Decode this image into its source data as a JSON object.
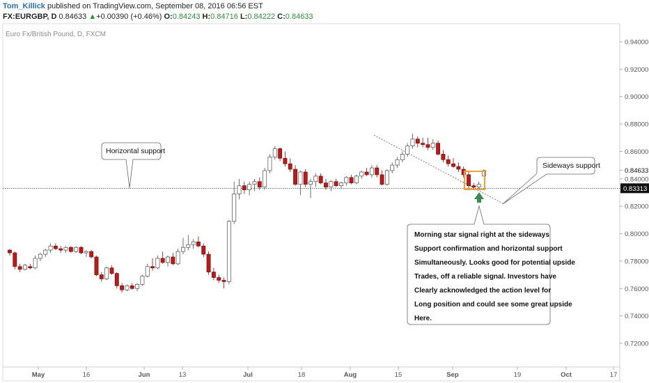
{
  "header": {
    "author": "Tom_Killick",
    "published": " published on TradingView.com, September 08, 2016 06:56 EST",
    "symbol": "FX:EURGBP, D",
    "last": "0.84633",
    "change_arrow": "▲",
    "change": "+0.00390 (+0.46%)",
    "o_label": "O:",
    "o_value": "0.84243",
    "h_label": "H:",
    "h_value": "0.84716",
    "l_label": "L:",
    "l_value": "0.84222",
    "c_label": "C:",
    "c_value": "0.84633"
  },
  "chart_title": "Euro Fx/British Pound, D, FXCM",
  "annotations": {
    "horizontal_support": "Horizontal support",
    "sideways_support": "Sideways support",
    "note_lines": [
      "Morning star signal right at the sideways",
      "Support confirmation and horizontal support",
      "Simultaneously. Looks good for potential upside",
      "Trades, off a reliable signal. Investors have",
      "Clearly acknowledged the action level for",
      "Long position and could see some great upside",
      "Here."
    ]
  },
  "colors": {
    "up_fill": "#ffffff",
    "up_stroke": "#4a4a4a",
    "down_fill": "#b71c1c",
    "down_stroke": "#7a1010",
    "highlight_box": "#f0a030",
    "arrow": "#3d8a55",
    "price_label_bg": "#111111",
    "price_label_fg": "#ffffff"
  },
  "chart_data": {
    "type": "candlestick",
    "title": "Euro Fx/British Pound, D, FXCM",
    "symbol": "EURGBP",
    "ylim": [
      0.702,
      0.95
    ],
    "y_ticks": [
      "0.94000",
      "0.92000",
      "0.90000",
      "0.88000",
      "0.86000",
      "0.84633",
      "0.84000",
      "0.83313",
      "0.82000",
      "0.80000",
      "0.78000",
      "0.76000",
      "0.74000",
      "0.72000"
    ],
    "x_ticks": [
      "May",
      "16",
      "Jun",
      "13",
      "Jul",
      "18",
      "Aug",
      "15",
      "Sep",
      "19",
      "Oct",
      "17"
    ],
    "current_price": 0.84633,
    "horizontal_support_level": 0.83313,
    "candles": [
      [
        0.788,
        0.789,
        0.784,
        0.786
      ],
      [
        0.786,
        0.787,
        0.774,
        0.776
      ],
      [
        0.776,
        0.778,
        0.772,
        0.774
      ],
      [
        0.774,
        0.778,
        0.773,
        0.777
      ],
      [
        0.776,
        0.778,
        0.774,
        0.775
      ],
      [
        0.775,
        0.784,
        0.774,
        0.782
      ],
      [
        0.782,
        0.786,
        0.78,
        0.785
      ],
      [
        0.785,
        0.789,
        0.783,
        0.788
      ],
      [
        0.788,
        0.793,
        0.786,
        0.791
      ],
      [
        0.791,
        0.793,
        0.788,
        0.789
      ],
      [
        0.789,
        0.791,
        0.786,
        0.788
      ],
      [
        0.788,
        0.791,
        0.786,
        0.79
      ],
      [
        0.79,
        0.791,
        0.786,
        0.787
      ],
      [
        0.787,
        0.791,
        0.786,
        0.79
      ],
      [
        0.79,
        0.791,
        0.785,
        0.786
      ],
      [
        0.786,
        0.788,
        0.783,
        0.787
      ],
      [
        0.787,
        0.788,
        0.782,
        0.783
      ],
      [
        0.783,
        0.784,
        0.769,
        0.77
      ],
      [
        0.77,
        0.772,
        0.765,
        0.767
      ],
      [
        0.767,
        0.776,
        0.766,
        0.775
      ],
      [
        0.775,
        0.777,
        0.77,
        0.771
      ],
      [
        0.771,
        0.772,
        0.76,
        0.762
      ],
      [
        0.762,
        0.764,
        0.757,
        0.759
      ],
      [
        0.759,
        0.763,
        0.758,
        0.762
      ],
      [
        0.762,
        0.764,
        0.759,
        0.76
      ],
      [
        0.76,
        0.764,
        0.758,
        0.763
      ],
      [
        0.763,
        0.77,
        0.762,
        0.769
      ],
      [
        0.769,
        0.778,
        0.768,
        0.776
      ],
      [
        0.776,
        0.782,
        0.773,
        0.775
      ],
      [
        0.775,
        0.784,
        0.774,
        0.782
      ],
      [
        0.782,
        0.787,
        0.778,
        0.779
      ],
      [
        0.779,
        0.784,
        0.776,
        0.783
      ],
      [
        0.783,
        0.786,
        0.777,
        0.778
      ],
      [
        0.778,
        0.789,
        0.777,
        0.787
      ],
      [
        0.787,
        0.797,
        0.785,
        0.79
      ],
      [
        0.79,
        0.799,
        0.788,
        0.792
      ],
      [
        0.792,
        0.796,
        0.789,
        0.794
      ],
      [
        0.794,
        0.798,
        0.79,
        0.791
      ],
      [
        0.791,
        0.793,
        0.783,
        0.785
      ],
      [
        0.785,
        0.787,
        0.77,
        0.772
      ],
      [
        0.772,
        0.775,
        0.766,
        0.768
      ],
      [
        0.768,
        0.77,
        0.764,
        0.766
      ],
      [
        0.766,
        0.768,
        0.76,
        0.765
      ],
      [
        0.765,
        0.81,
        0.763,
        0.809
      ],
      [
        0.809,
        0.838,
        0.807,
        0.829
      ],
      [
        0.829,
        0.84,
        0.825,
        0.835
      ],
      [
        0.835,
        0.838,
        0.829,
        0.832
      ],
      [
        0.832,
        0.838,
        0.828,
        0.836
      ],
      [
        0.836,
        0.84,
        0.831,
        0.838
      ],
      [
        0.838,
        0.841,
        0.832,
        0.834
      ],
      [
        0.834,
        0.848,
        0.832,
        0.846
      ],
      [
        0.846,
        0.858,
        0.844,
        0.856
      ],
      [
        0.856,
        0.864,
        0.854,
        0.862
      ],
      [
        0.862,
        0.863,
        0.853,
        0.855
      ],
      [
        0.855,
        0.86,
        0.849,
        0.851
      ],
      [
        0.851,
        0.855,
        0.845,
        0.847
      ],
      [
        0.847,
        0.85,
        0.835,
        0.836
      ],
      [
        0.836,
        0.846,
        0.828,
        0.845
      ],
      [
        0.845,
        0.847,
        0.834,
        0.836
      ],
      [
        0.836,
        0.84,
        0.826,
        0.838
      ],
      [
        0.838,
        0.844,
        0.834,
        0.842
      ],
      [
        0.842,
        0.844,
        0.836,
        0.837
      ],
      [
        0.837,
        0.84,
        0.832,
        0.834
      ],
      [
        0.834,
        0.839,
        0.831,
        0.838
      ],
      [
        0.838,
        0.84,
        0.834,
        0.835
      ],
      [
        0.835,
        0.838,
        0.833,
        0.837
      ],
      [
        0.837,
        0.842,
        0.835,
        0.841
      ],
      [
        0.841,
        0.843,
        0.836,
        0.837
      ],
      [
        0.837,
        0.843,
        0.836,
        0.842
      ],
      [
        0.842,
        0.846,
        0.84,
        0.845
      ],
      [
        0.845,
        0.848,
        0.842,
        0.843
      ],
      [
        0.843,
        0.85,
        0.841,
        0.848
      ],
      [
        0.848,
        0.85,
        0.841,
        0.843
      ],
      [
        0.843,
        0.846,
        0.835,
        0.836
      ],
      [
        0.836,
        0.847,
        0.835,
        0.846
      ],
      [
        0.846,
        0.852,
        0.844,
        0.85
      ],
      [
        0.85,
        0.856,
        0.848,
        0.854
      ],
      [
        0.854,
        0.86,
        0.852,
        0.858
      ],
      [
        0.858,
        0.866,
        0.856,
        0.864
      ],
      [
        0.864,
        0.873,
        0.862,
        0.869
      ],
      [
        0.869,
        0.871,
        0.863,
        0.866
      ],
      [
        0.866,
        0.87,
        0.863,
        0.865
      ],
      [
        0.865,
        0.87,
        0.861,
        0.863
      ],
      [
        0.863,
        0.869,
        0.861,
        0.866
      ],
      [
        0.866,
        0.868,
        0.857,
        0.858
      ],
      [
        0.858,
        0.861,
        0.852,
        0.854
      ],
      [
        0.854,
        0.857,
        0.849,
        0.851
      ],
      [
        0.851,
        0.855,
        0.848,
        0.849
      ],
      [
        0.849,
        0.852,
        0.845,
        0.847
      ],
      [
        0.847,
        0.849,
        0.841,
        0.843
      ],
      [
        0.843,
        0.845,
        0.833,
        0.835
      ],
      [
        0.835,
        0.837,
        0.833,
        0.834
      ],
      [
        0.834,
        0.838,
        0.832,
        0.836
      ],
      [
        0.842,
        0.847,
        0.842,
        0.846
      ]
    ]
  }
}
